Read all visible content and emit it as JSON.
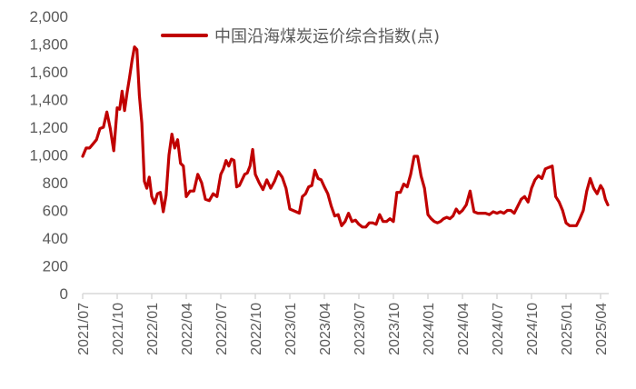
{
  "chart_data": {
    "type": "line",
    "title": "",
    "xlabel": "",
    "ylabel": "",
    "ylim": [
      0,
      2000
    ],
    "yticks": [
      "0",
      "200",
      "400",
      "600",
      "800",
      "1,000",
      "1,200",
      "1,400",
      "1,600",
      "1,800",
      "2,000"
    ],
    "xticks": [
      "2021/07",
      "2021/10",
      "2022/01",
      "2022/04",
      "2022/07",
      "2022/10",
      "2023/01",
      "2023/04",
      "2023/07",
      "2023/10",
      "2024/01",
      "2024/04",
      "2024/07",
      "2024/10",
      "2025/01",
      "2025/04"
    ],
    "grid": false,
    "legend_position": "top-center",
    "series": [
      {
        "name": "中国沿海煤炭运价综合指数(点)",
        "color": "#C00000",
        "points": [
          [
            "2021/07",
            990
          ],
          [
            "",
            1050
          ],
          [
            "",
            1050
          ],
          [
            "",
            1080
          ],
          [
            "",
            1110
          ],
          [
            "",
            1190
          ],
          [
            "",
            1200
          ],
          [
            "",
            1310
          ],
          [
            "",
            1190
          ],
          [
            "",
            1030
          ],
          [
            "2021/10",
            1340
          ],
          [
            "",
            1330
          ],
          [
            "",
            1460
          ],
          [
            "",
            1320
          ],
          [
            "",
            1450
          ],
          [
            "",
            1560
          ],
          [
            "",
            1680
          ],
          [
            "",
            1780
          ],
          [
            "",
            1760
          ],
          [
            "",
            1430
          ],
          [
            "",
            1230
          ],
          [
            "",
            810
          ],
          [
            "",
            760
          ],
          [
            "",
            840
          ],
          [
            "2022/01",
            700
          ],
          [
            "",
            650
          ],
          [
            "",
            720
          ],
          [
            "",
            730
          ],
          [
            "",
            590
          ],
          [
            "",
            710
          ],
          [
            "",
            1000
          ],
          [
            "",
            1150
          ],
          [
            "",
            1050
          ],
          [
            "",
            1110
          ],
          [
            "",
            940
          ],
          [
            "",
            920
          ],
          [
            "2022/04",
            700
          ],
          [
            "",
            740
          ],
          [
            "",
            740
          ],
          [
            "",
            860
          ],
          [
            "",
            800
          ],
          [
            "",
            680
          ],
          [
            "",
            670
          ],
          [
            "",
            720
          ],
          [
            "",
            700
          ],
          [
            "2022/07",
            860
          ],
          [
            "",
            900
          ],
          [
            "",
            960
          ],
          [
            "",
            920
          ],
          [
            "",
            970
          ],
          [
            "",
            960
          ],
          [
            "",
            770
          ],
          [
            "",
            780
          ],
          [
            "",
            820
          ],
          [
            "",
            860
          ],
          [
            "",
            870
          ],
          [
            "",
            920
          ],
          [
            "",
            1040
          ],
          [
            "2022/10",
            860
          ],
          [
            "",
            800
          ],
          [
            "",
            750
          ],
          [
            "",
            820
          ],
          [
            "",
            760
          ],
          [
            "",
            810
          ],
          [
            "",
            880
          ],
          [
            "",
            840
          ],
          [
            "",
            760
          ],
          [
            "2023/01",
            610
          ],
          [
            "",
            600
          ],
          [
            "",
            590
          ],
          [
            "",
            580
          ],
          [
            "",
            700
          ],
          [
            "",
            720
          ],
          [
            "",
            770
          ],
          [
            "",
            780
          ],
          [
            "",
            890
          ],
          [
            "",
            830
          ],
          [
            "",
            820
          ],
          [
            "2023/04",
            770
          ],
          [
            "",
            720
          ],
          [
            "",
            630
          ],
          [
            "",
            560
          ],
          [
            "",
            570
          ],
          [
            "",
            490
          ],
          [
            "",
            520
          ],
          [
            "",
            580
          ],
          [
            "",
            520
          ],
          [
            "",
            530
          ],
          [
            "2023/07",
            500
          ],
          [
            "",
            480
          ],
          [
            "",
            480
          ],
          [
            "",
            510
          ],
          [
            "",
            510
          ],
          [
            "",
            500
          ],
          [
            "",
            570
          ],
          [
            "",
            520
          ],
          [
            "",
            520
          ],
          [
            "",
            540
          ],
          [
            "2023/10",
            520
          ],
          [
            "",
            730
          ],
          [
            "",
            730
          ],
          [
            "",
            790
          ],
          [
            "",
            770
          ],
          [
            "",
            860
          ],
          [
            "",
            990
          ],
          [
            "",
            990
          ],
          [
            "",
            850
          ],
          [
            "",
            760
          ],
          [
            "2024/01",
            570
          ],
          [
            "",
            540
          ],
          [
            "",
            520
          ],
          [
            "",
            510
          ],
          [
            "",
            520
          ],
          [
            "",
            540
          ],
          [
            "",
            550
          ],
          [
            "",
            540
          ],
          [
            "",
            560
          ],
          [
            "",
            610
          ],
          [
            "",
            580
          ],
          [
            "2024/04",
            600
          ],
          [
            "",
            640
          ],
          [
            "",
            740
          ],
          [
            "",
            590
          ],
          [
            "",
            580
          ],
          [
            "",
            580
          ],
          [
            "",
            580
          ],
          [
            "",
            570
          ],
          [
            "",
            590
          ],
          [
            "2024/07",
            580
          ],
          [
            "",
            590
          ],
          [
            "",
            580
          ],
          [
            "",
            600
          ],
          [
            "",
            600
          ],
          [
            "",
            580
          ],
          [
            "",
            630
          ],
          [
            "",
            680
          ],
          [
            "",
            700
          ],
          [
            "",
            660
          ],
          [
            "2024/10",
            760
          ],
          [
            "",
            820
          ],
          [
            "",
            850
          ],
          [
            "",
            830
          ],
          [
            "",
            900
          ],
          [
            "",
            910
          ],
          [
            "",
            920
          ],
          [
            "",
            700
          ],
          [
            "",
            660
          ],
          [
            "",
            600
          ],
          [
            "2025/01",
            510
          ],
          [
            "",
            490
          ],
          [
            "",
            490
          ],
          [
            "",
            490
          ],
          [
            "",
            540
          ],
          [
            "",
            600
          ],
          [
            "",
            740
          ],
          [
            "",
            830
          ],
          [
            "",
            760
          ],
          [
            "",
            720
          ],
          [
            "2025/04",
            780
          ],
          [
            "",
            750
          ],
          [
            "",
            680
          ],
          [
            "",
            640
          ]
        ]
      }
    ]
  },
  "legend": {
    "label": "中国沿海煤炭运价综合指数(点)"
  }
}
